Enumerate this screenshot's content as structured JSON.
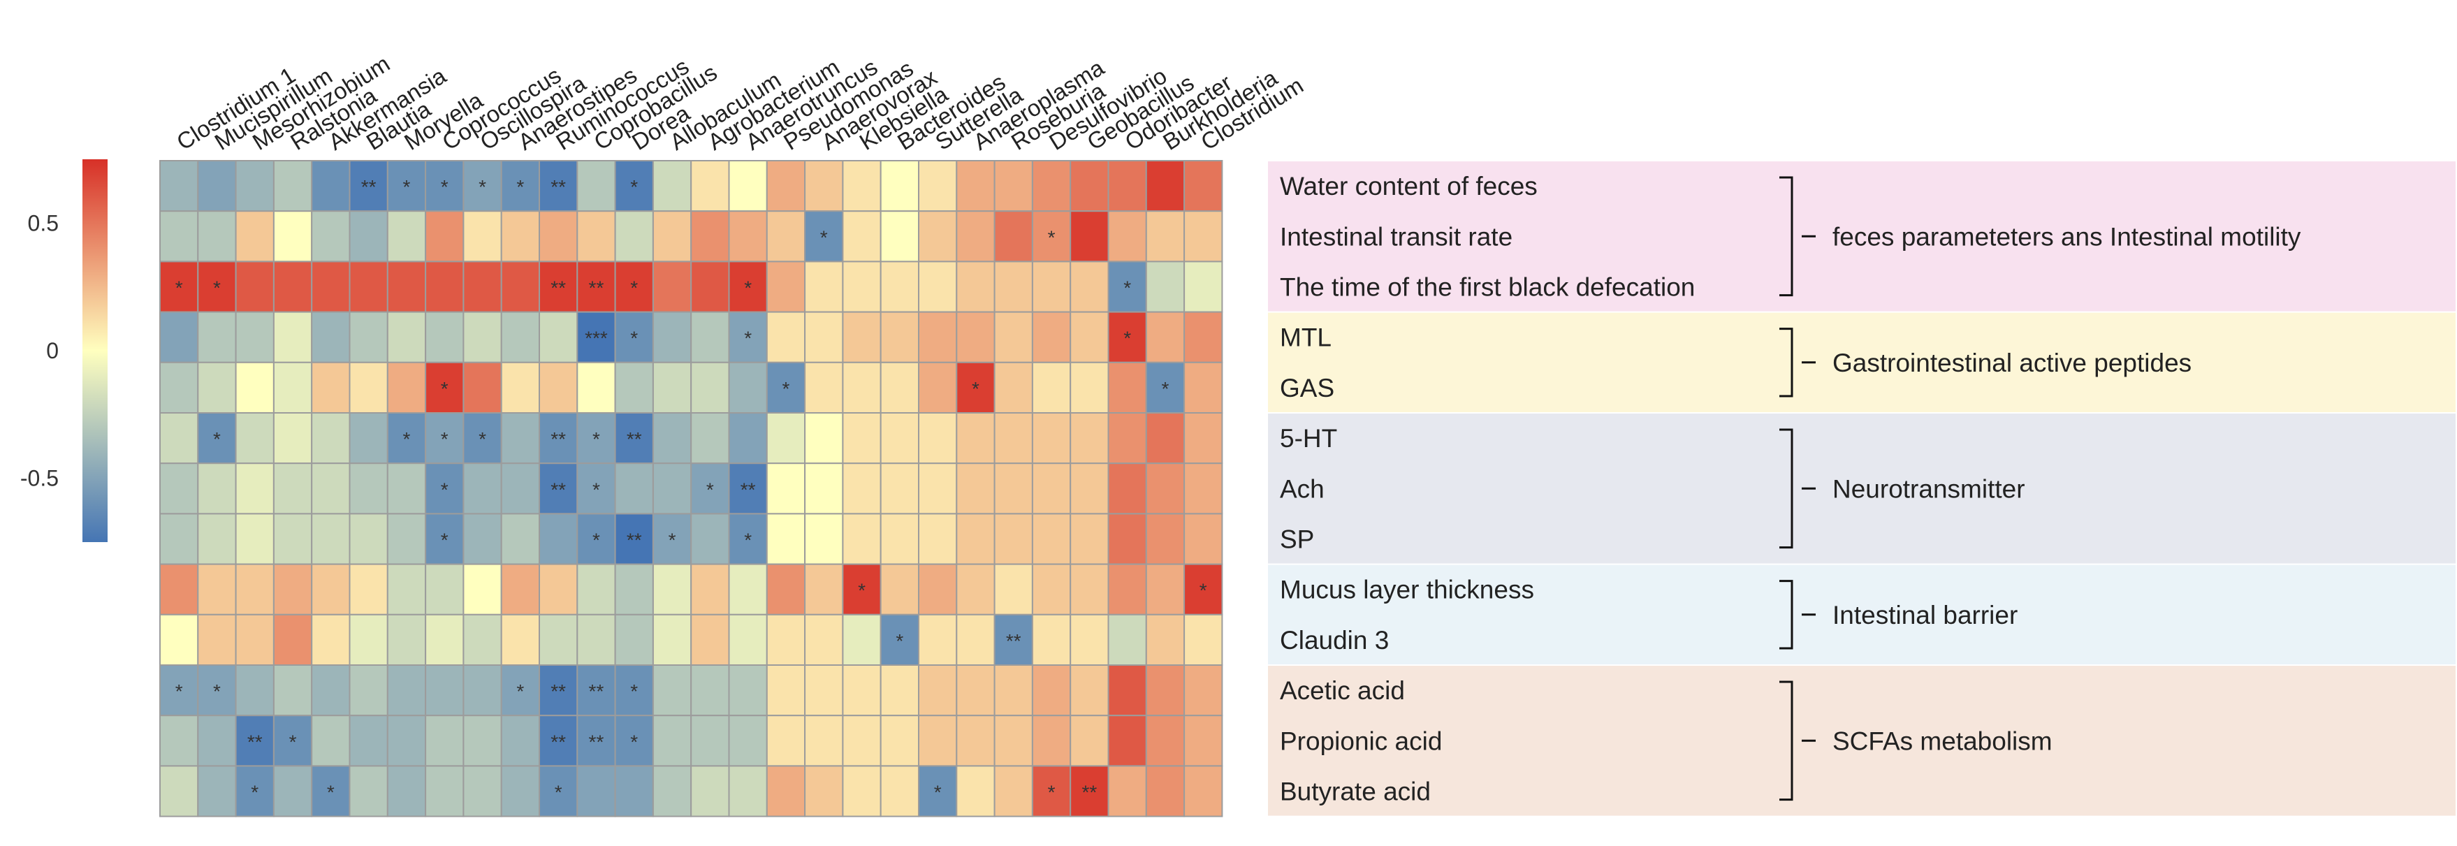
{
  "chart_data": {
    "type": "heatmap",
    "title": "",
    "columns": [
      "Clostridium 1",
      "Mucispirillum",
      "Mesorhizobium",
      "Ralstonia",
      "Akkermansia",
      "Blautia",
      "Moryella",
      "Coprococcus",
      "Oscillospira",
      "Anaerostipes",
      "Ruminococcus",
      "Coprobacillus",
      "Dorea",
      "Allobaculum",
      "Agrobacterium",
      "Anaerotruncus",
      "Pseudomonas",
      "Anaerovorax",
      "Klebsiella",
      "Bacteroides",
      "Sutterella",
      "Anaeroplasma",
      "Roseburia",
      "Desulfovibrio",
      "Geobacillus",
      "Odoribacter",
      "Burkholderia",
      "Clostridium"
    ],
    "rows": [
      "Water content of feces",
      "Intestinal transit rate",
      "The time of the first black defecation",
      "MTL",
      "GAS",
      "5-HT",
      "Ach",
      "SP",
      "Mucus layer thickness",
      "Claudin 3",
      "Acetic acid",
      "Propionic acid",
      "Butyrate acid"
    ],
    "groups": [
      {
        "label": "feces parameteters ans Intestinal motility",
        "rows": [
          0,
          2
        ],
        "color": "#f8e1ef"
      },
      {
        "label": "Gastrointestinal active peptides",
        "rows": [
          3,
          4
        ],
        "color": "#fdf6d7"
      },
      {
        "label": "Neurotransmitter",
        "rows": [
          5,
          7
        ],
        "color": "#e6e8ef"
      },
      {
        "label": "Intestinal barrier",
        "rows": [
          8,
          9
        ],
        "color": "#eaf3f8"
      },
      {
        "label": "SCFAs metabolism",
        "rows": [
          10,
          12
        ],
        "color": "#f6e6dc"
      }
    ],
    "values": [
      [
        -0.4,
        -0.5,
        -0.4,
        -0.3,
        -0.6,
        -0.7,
        -0.6,
        -0.6,
        -0.5,
        -0.6,
        -0.7,
        -0.3,
        -0.7,
        -0.2,
        0.1,
        0.0,
        0.3,
        0.2,
        0.1,
        0.0,
        0.1,
        0.3,
        0.3,
        0.4,
        0.5,
        0.5,
        0.7,
        0.5
      ],
      [
        -0.3,
        -0.3,
        0.2,
        0.0,
        -0.3,
        -0.4,
        -0.2,
        0.4,
        0.1,
        0.2,
        0.3,
        0.2,
        -0.2,
        0.2,
        0.4,
        0.3,
        0.2,
        -0.6,
        0.1,
        0.0,
        0.2,
        0.3,
        0.5,
        0.4,
        0.7,
        0.3,
        0.2,
        0.2
      ],
      [
        0.7,
        0.7,
        0.6,
        0.6,
        0.6,
        0.6,
        0.6,
        0.6,
        0.6,
        0.6,
        0.7,
        0.7,
        0.7,
        0.5,
        0.6,
        0.7,
        0.3,
        0.1,
        0.1,
        0.1,
        0.1,
        0.2,
        0.2,
        0.2,
        0.2,
        -0.6,
        -0.2,
        -0.1
      ],
      [
        -0.5,
        -0.3,
        -0.3,
        -0.1,
        -0.4,
        -0.3,
        -0.2,
        -0.3,
        -0.2,
        -0.3,
        -0.2,
        -0.8,
        -0.6,
        -0.4,
        -0.3,
        -0.5,
        0.1,
        0.1,
        0.2,
        0.2,
        0.3,
        0.3,
        0.2,
        0.3,
        0.2,
        0.7,
        0.3,
        0.4
      ],
      [
        -0.3,
        -0.2,
        0.0,
        -0.1,
        0.2,
        0.1,
        0.3,
        0.7,
        0.5,
        0.1,
        0.2,
        0.0,
        -0.3,
        -0.2,
        -0.2,
        -0.4,
        -0.6,
        0.1,
        0.1,
        0.1,
        0.3,
        0.7,
        0.2,
        0.1,
        0.1,
        0.4,
        -0.6,
        0.3
      ],
      [
        -0.2,
        -0.6,
        -0.2,
        -0.1,
        -0.2,
        -0.4,
        -0.6,
        -0.5,
        -0.6,
        -0.4,
        -0.6,
        -0.5,
        -0.7,
        -0.4,
        -0.3,
        -0.5,
        -0.1,
        0.0,
        0.1,
        0.1,
        0.1,
        0.2,
        0.2,
        0.2,
        0.2,
        0.4,
        0.5,
        0.3
      ],
      [
        -0.3,
        -0.2,
        -0.1,
        -0.2,
        -0.2,
        -0.3,
        -0.3,
        -0.6,
        -0.4,
        -0.4,
        -0.7,
        -0.5,
        -0.4,
        -0.4,
        -0.5,
        -0.7,
        0.0,
        0.0,
        0.1,
        0.1,
        0.1,
        0.2,
        0.2,
        0.2,
        0.2,
        0.5,
        0.4,
        0.3
      ],
      [
        -0.3,
        -0.2,
        -0.1,
        -0.2,
        -0.2,
        -0.2,
        -0.3,
        -0.6,
        -0.4,
        -0.3,
        -0.5,
        -0.6,
        -0.8,
        -0.5,
        -0.4,
        -0.6,
        0.0,
        0.0,
        0.1,
        0.1,
        0.1,
        0.2,
        0.2,
        0.2,
        0.2,
        0.5,
        0.4,
        0.3
      ],
      [
        0.4,
        0.2,
        0.2,
        0.3,
        0.2,
        0.1,
        -0.2,
        -0.2,
        0.0,
        0.3,
        0.2,
        -0.2,
        -0.3,
        -0.1,
        0.2,
        -0.1,
        0.4,
        0.2,
        0.7,
        0.2,
        0.3,
        0.2,
        0.1,
        0.2,
        0.2,
        0.4,
        0.3,
        0.7
      ],
      [
        0.0,
        0.2,
        0.2,
        0.4,
        0.1,
        -0.1,
        -0.2,
        -0.1,
        -0.2,
        0.1,
        -0.2,
        -0.2,
        -0.3,
        -0.1,
        0.2,
        -0.1,
        0.1,
        0.1,
        -0.1,
        -0.6,
        0.1,
        0.1,
        -0.6,
        0.1,
        0.1,
        -0.2,
        0.2,
        0.1
      ],
      [
        -0.5,
        -0.5,
        -0.4,
        -0.3,
        -0.4,
        -0.3,
        -0.4,
        -0.4,
        -0.4,
        -0.5,
        -0.7,
        -0.6,
        -0.6,
        -0.3,
        -0.3,
        -0.3,
        0.1,
        0.1,
        0.1,
        0.1,
        0.2,
        0.2,
        0.2,
        0.3,
        0.2,
        0.6,
        0.4,
        0.3
      ],
      [
        -0.3,
        -0.4,
        -0.7,
        -0.6,
        -0.3,
        -0.4,
        -0.4,
        -0.3,
        -0.3,
        -0.4,
        -0.7,
        -0.6,
        -0.6,
        -0.3,
        -0.3,
        -0.3,
        0.1,
        0.1,
        0.1,
        0.1,
        0.2,
        0.2,
        0.2,
        0.3,
        0.2,
        0.6,
        0.4,
        0.3
      ],
      [
        -0.2,
        -0.4,
        -0.6,
        -0.4,
        -0.6,
        -0.3,
        -0.4,
        -0.3,
        -0.3,
        -0.4,
        -0.6,
        -0.5,
        -0.5,
        -0.3,
        -0.2,
        -0.2,
        0.3,
        0.2,
        0.1,
        0.1,
        -0.6,
        0.1,
        0.2,
        0.6,
        0.7,
        0.3,
        0.4,
        0.3
      ]
    ],
    "significance": [
      [
        "",
        "",
        "",
        "",
        "",
        "**",
        "*",
        "*",
        "*",
        "*",
        "**",
        "",
        "*",
        "",
        "",
        "",
        "",
        "",
        "",
        "",
        "",
        "",
        "",
        "",
        "",
        "",
        "",
        ""
      ],
      [
        "",
        "",
        "",
        "",
        "",
        "",
        "",
        "",
        "",
        "",
        "",
        "",
        "",
        "",
        "",
        "",
        "",
        "*",
        "",
        "",
        "",
        "",
        "",
        "*",
        "",
        "",
        "",
        ""
      ],
      [
        "*",
        "*",
        "",
        "",
        "",
        "",
        "",
        "",
        "",
        "",
        "**",
        "**",
        "*",
        "",
        "",
        "*",
        "",
        "",
        "",
        "",
        "",
        "",
        "",
        "",
        "",
        "*",
        "",
        ""
      ],
      [
        "",
        "",
        "",
        "",
        "",
        "",
        "",
        "",
        "",
        "",
        "",
        "***",
        "*",
        "",
        "",
        "*",
        "",
        "",
        "",
        "",
        "",
        "",
        "",
        "",
        "",
        "*",
        "",
        ""
      ],
      [
        "",
        "",
        "",
        "",
        "",
        "",
        "",
        "*",
        "",
        "",
        "",
        "",
        "",
        "",
        "",
        "",
        "*",
        "",
        "",
        "",
        "",
        "*",
        "",
        "",
        "",
        "",
        "*",
        ""
      ],
      [
        "",
        "*",
        "",
        "",
        "",
        "",
        "*",
        "*",
        "*",
        "",
        "**",
        "*",
        "**",
        "",
        "",
        "",
        "",
        "",
        "",
        "",
        "",
        "",
        "",
        "",
        "",
        "",
        "",
        ""
      ],
      [
        "",
        "",
        "",
        "",
        "",
        "",
        "",
        "*",
        "",
        "",
        "**",
        "*",
        "",
        "",
        "*",
        "**",
        "",
        "",
        "",
        "",
        "",
        "",
        "",
        "",
        "",
        "",
        "",
        ""
      ],
      [
        "",
        "",
        "",
        "",
        "",
        "",
        "",
        "*",
        "",
        "",
        "",
        "*",
        "**",
        "*",
        "",
        "*",
        "",
        "",
        "",
        "",
        "",
        "",
        "",
        "",
        "",
        "",
        "",
        ""
      ],
      [
        "",
        "",
        "",
        "",
        "",
        "",
        "",
        "",
        "",
        "",
        "",
        "",
        "",
        "",
        "",
        "",
        "",
        "",
        "*",
        "",
        "",
        "",
        "",
        "",
        "",
        "",
        "",
        "*"
      ],
      [
        "",
        "",
        "",
        "",
        "",
        "",
        "",
        "",
        "",
        "",
        "",
        "",
        "",
        "",
        "",
        "",
        "",
        "",
        "",
        "*",
        "",
        "",
        "**",
        "",
        "",
        "",
        "",
        ""
      ],
      [
        "*",
        "*",
        "",
        "",
        "",
        "",
        "",
        "",
        "",
        "*",
        "**",
        "**",
        "*",
        "",
        "",
        "",
        "",
        "",
        "",
        "",
        "",
        "",
        "",
        "",
        "",
        "",
        "",
        ""
      ],
      [
        "",
        "",
        "**",
        "*",
        "",
        "",
        "",
        "",
        "",
        "",
        "**",
        "**",
        "*",
        "",
        "",
        "",
        "",
        "",
        "",
        "",
        "",
        "",
        "",
        "",
        "",
        "",
        "",
        ""
      ],
      [
        "",
        "",
        "*",
        "",
        "*",
        "",
        "",
        "",
        "",
        "",
        "*",
        "",
        "",
        "",
        "",
        "",
        "",
        "",
        "",
        "",
        "*",
        "",
        "",
        "*",
        "**",
        "",
        "",
        ""
      ]
    ],
    "colorbar": {
      "ticks": [
        0.5,
        0,
        -0.5
      ],
      "tick_labels": [
        "0.5",
        "0",
        "-0.5"
      ],
      "range": [
        -0.75,
        0.75
      ],
      "low_color": "#4575b4",
      "mid_color": "#ffffbf",
      "high_color": "#d73027"
    }
  }
}
